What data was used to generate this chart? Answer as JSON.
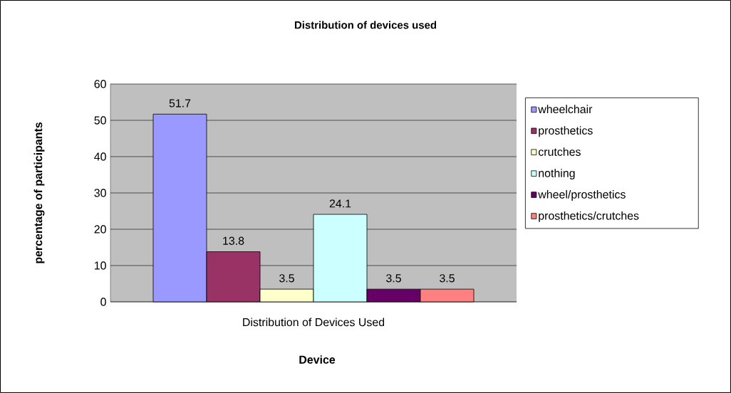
{
  "chart_data": {
    "type": "bar",
    "title": "Distribution of devices used",
    "xlabel": "Device",
    "ylabel": "percentage of participants",
    "categories": [
      "Distribution of Devices Used"
    ],
    "series": [
      {
        "name": "wheelchair",
        "color": "#9999ff",
        "values": [
          51.7
        ]
      },
      {
        "name": "prosthetics",
        "color": "#993366",
        "values": [
          13.8
        ]
      },
      {
        "name": "crutches",
        "color": "#ffffcc",
        "values": [
          3.5
        ]
      },
      {
        "name": "nothing",
        "color": "#ccffff",
        "values": [
          24.1
        ]
      },
      {
        "name": "wheel/prosthetics",
        "color": "#660066",
        "values": [
          3.5
        ]
      },
      {
        "name": "prosthetics/crutches",
        "color": "#ff8080",
        "values": [
          3.5
        ]
      }
    ],
    "ylim": [
      0,
      60
    ],
    "yticks": [
      0,
      10,
      20,
      30,
      40,
      50,
      60
    ],
    "grid": "y",
    "legend": "right",
    "data_labels": true
  }
}
